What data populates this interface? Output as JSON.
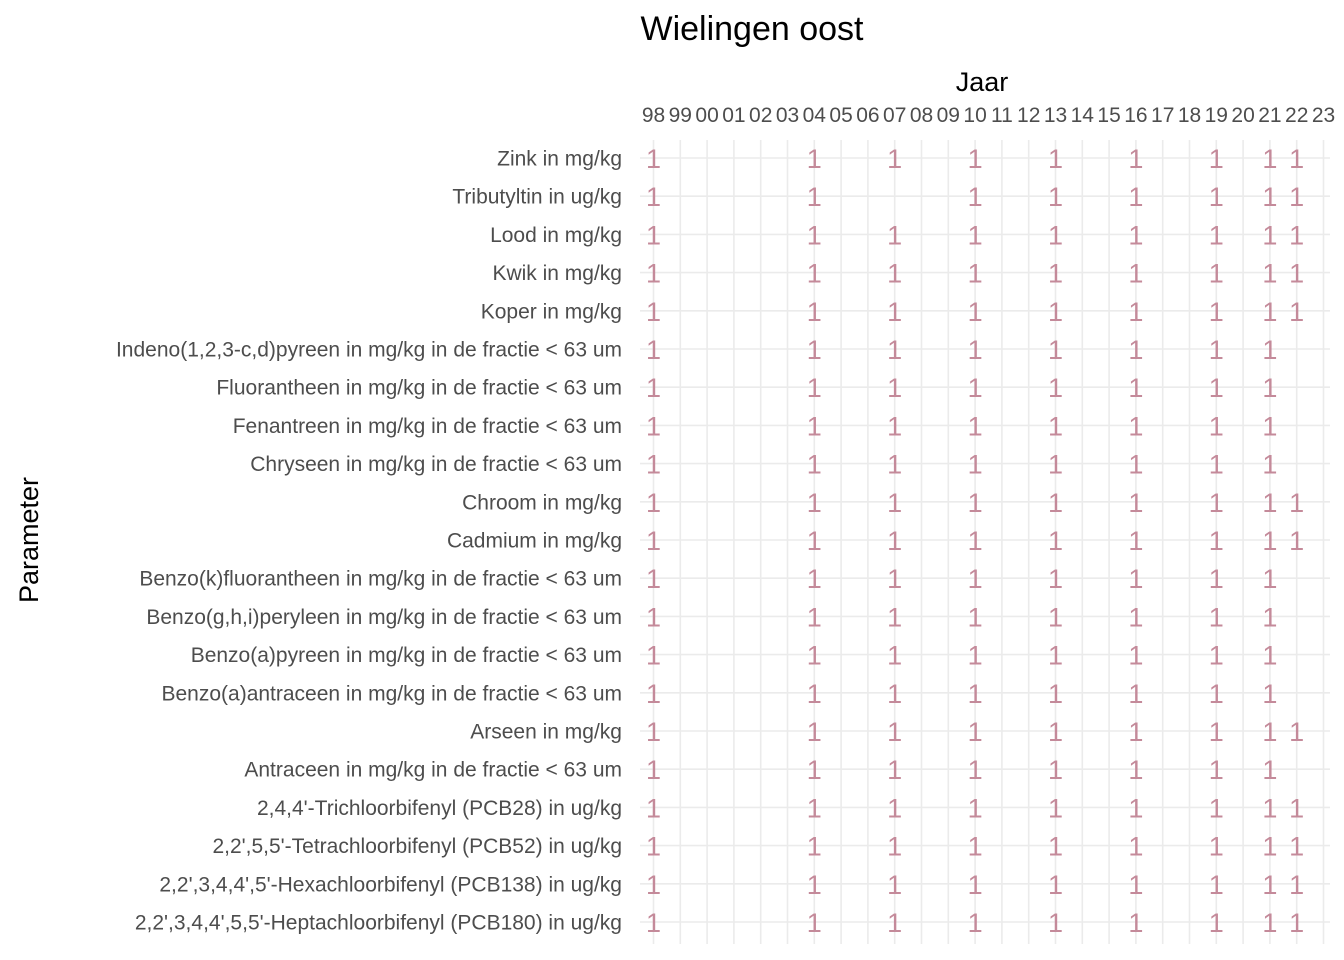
{
  "chart_data": {
    "type": "table",
    "title": "Wielingen oost",
    "xlabel": "Jaar",
    "ylabel": "Parameter",
    "x_ticks": [
      "98",
      "99",
      "00",
      "01",
      "02",
      "03",
      "04",
      "05",
      "06",
      "07",
      "08",
      "09",
      "10",
      "11",
      "12",
      "13",
      "14",
      "15",
      "16",
      "17",
      "18",
      "19",
      "20",
      "21",
      "22",
      "23"
    ],
    "y_categories": [
      "Zink in mg/kg",
      "Tributyltin in ug/kg",
      "Lood in mg/kg",
      "Kwik in mg/kg",
      "Koper in mg/kg",
      "Indeno(1,2,3-c,d)pyreen in mg/kg in de fractie < 63 um",
      "Fluorantheen in mg/kg in de fractie < 63 um",
      "Fenantreen in mg/kg in de fractie < 63 um",
      "Chryseen in mg/kg in de fractie < 63 um",
      "Chroom in mg/kg",
      "Cadmium in mg/kg",
      "Benzo(k)fluorantheen in mg/kg in de fractie < 63 um",
      "Benzo(g,h,i)peryleen in mg/kg in de fractie < 63 um",
      "Benzo(a)pyreen in mg/kg in de fractie < 63 um",
      "Benzo(a)antraceen in mg/kg in de fractie < 63 um",
      "Arseen in mg/kg",
      "Antraceen in mg/kg in de fractie < 63 um",
      "2,4,4'-Trichloorbifenyl (PCB28) in ug/kg",
      "2,2',5,5'-Tetrachloorbifenyl (PCB52) in ug/kg",
      "2,2',3,4,4',5'-Hexachloorbifenyl (PCB138) in ug/kg",
      "2,2',3,4,4',5,5'-Heptachloorbifenyl (PCB180) in ug/kg"
    ],
    "cell_label": "1",
    "cells": [
      {
        "parameter": "Zink in mg/kg",
        "years": [
          "98",
          "04",
          "07",
          "10",
          "13",
          "16",
          "19",
          "21",
          "22"
        ]
      },
      {
        "parameter": "Tributyltin in ug/kg",
        "years": [
          "98",
          "04",
          "10",
          "13",
          "16",
          "19",
          "21",
          "22"
        ]
      },
      {
        "parameter": "Lood in mg/kg",
        "years": [
          "98",
          "04",
          "07",
          "10",
          "13",
          "16",
          "19",
          "21",
          "22"
        ]
      },
      {
        "parameter": "Kwik in mg/kg",
        "years": [
          "98",
          "04",
          "07",
          "10",
          "13",
          "16",
          "19",
          "21",
          "22"
        ]
      },
      {
        "parameter": "Koper in mg/kg",
        "years": [
          "98",
          "04",
          "07",
          "10",
          "13",
          "16",
          "19",
          "21",
          "22"
        ]
      },
      {
        "parameter": "Indeno(1,2,3-c,d)pyreen in mg/kg in de fractie < 63 um",
        "years": [
          "98",
          "04",
          "07",
          "10",
          "13",
          "16",
          "19",
          "21"
        ]
      },
      {
        "parameter": "Fluorantheen in mg/kg in de fractie < 63 um",
        "years": [
          "98",
          "04",
          "07",
          "10",
          "13",
          "16",
          "19",
          "21"
        ]
      },
      {
        "parameter": "Fenantreen in mg/kg in de fractie < 63 um",
        "years": [
          "98",
          "04",
          "07",
          "10",
          "13",
          "16",
          "19",
          "21"
        ]
      },
      {
        "parameter": "Chryseen in mg/kg in de fractie < 63 um",
        "years": [
          "98",
          "04",
          "07",
          "10",
          "13",
          "16",
          "19",
          "21"
        ]
      },
      {
        "parameter": "Chroom in mg/kg",
        "years": [
          "98",
          "04",
          "07",
          "10",
          "13",
          "16",
          "19",
          "21",
          "22"
        ]
      },
      {
        "parameter": "Cadmium in mg/kg",
        "years": [
          "98",
          "04",
          "07",
          "10",
          "13",
          "16",
          "19",
          "21",
          "22"
        ]
      },
      {
        "parameter": "Benzo(k)fluorantheen in mg/kg in de fractie < 63 um",
        "years": [
          "98",
          "04",
          "07",
          "10",
          "13",
          "16",
          "19",
          "21"
        ]
      },
      {
        "parameter": "Benzo(g,h,i)peryleen in mg/kg in de fractie < 63 um",
        "years": [
          "98",
          "04",
          "07",
          "10",
          "13",
          "16",
          "19",
          "21"
        ]
      },
      {
        "parameter": "Benzo(a)pyreen in mg/kg in de fractie < 63 um",
        "years": [
          "98",
          "04",
          "07",
          "10",
          "13",
          "16",
          "19",
          "21"
        ]
      },
      {
        "parameter": "Benzo(a)antraceen in mg/kg in de fractie < 63 um",
        "years": [
          "98",
          "04",
          "07",
          "10",
          "13",
          "16",
          "19",
          "21"
        ]
      },
      {
        "parameter": "Arseen in mg/kg",
        "years": [
          "98",
          "04",
          "07",
          "10",
          "13",
          "16",
          "19",
          "21",
          "22"
        ]
      },
      {
        "parameter": "Antraceen in mg/kg in de fractie < 63 um",
        "years": [
          "98",
          "04",
          "07",
          "10",
          "13",
          "16",
          "19",
          "21"
        ]
      },
      {
        "parameter": "2,4,4'-Trichloorbifenyl (PCB28) in ug/kg",
        "years": [
          "98",
          "04",
          "07",
          "10",
          "13",
          "16",
          "19",
          "21",
          "22"
        ]
      },
      {
        "parameter": "2,2',5,5'-Tetrachloorbifenyl (PCB52) in ug/kg",
        "years": [
          "98",
          "04",
          "07",
          "10",
          "13",
          "16",
          "19",
          "21",
          "22"
        ]
      },
      {
        "parameter": "2,2',3,4,4',5'-Hexachloorbifenyl (PCB138) in ug/kg",
        "years": [
          "98",
          "04",
          "07",
          "10",
          "13",
          "16",
          "19",
          "21",
          "22"
        ]
      },
      {
        "parameter": "2,2',3,4,4',5,5'-Heptachloorbifenyl (PCB180) in ug/kg",
        "years": [
          "98",
          "04",
          "07",
          "10",
          "13",
          "16",
          "19",
          "21",
          "22"
        ]
      }
    ],
    "grid": true,
    "colors": {
      "mark": "#c48a9a",
      "grid": "#ebebeb",
      "tick_text": "#4d4d4d",
      "title": "#000000"
    }
  }
}
